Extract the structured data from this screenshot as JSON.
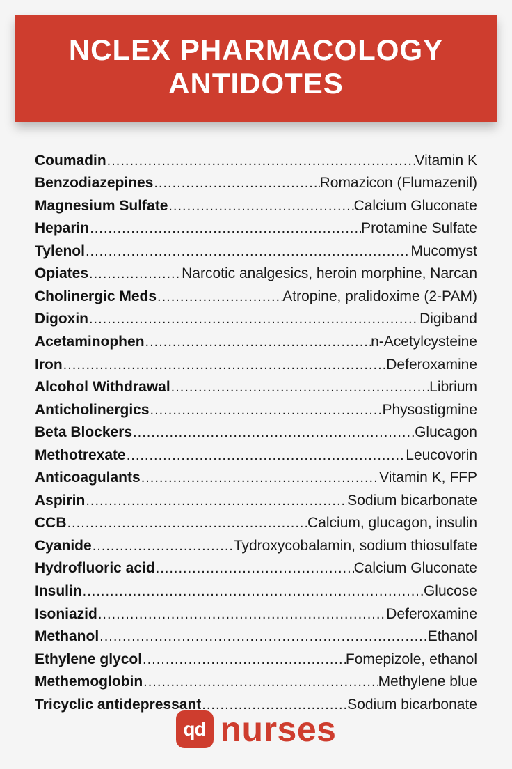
{
  "colors": {
    "accent": "#ce3d2e",
    "background": "#f5f5f5",
    "text": "#1a1a1a",
    "headerText": "#ffffff"
  },
  "header": {
    "line1": "NCLEX PHARMACOLOGY",
    "line2": "ANTIDOTES"
  },
  "rows": [
    {
      "drug": "Coumadin",
      "antidote": "Vitamin K"
    },
    {
      "drug": "Benzodiazepines",
      "antidote": "Romazicon (Flumazenil)"
    },
    {
      "drug": "Magnesium Sulfate",
      "antidote": "Calcium Gluconate"
    },
    {
      "drug": "Heparin",
      "antidote": " Protamine Sulfate"
    },
    {
      "drug": "Tylenol",
      "antidote": "Mucomyst"
    },
    {
      "drug": "Opiates",
      "antidote": "Narcotic analgesics, heroin morphine, Narcan"
    },
    {
      "drug": "Cholinergic Meds",
      "antidote": "Atropine, pralidoxime (2-PAM)"
    },
    {
      "drug": "Digoxin",
      "antidote": "Digiband"
    },
    {
      "drug": "Acetaminophen",
      "antidote": "n-Acetylcysteine"
    },
    {
      "drug": "Iron",
      "antidote": "Deferoxamine"
    },
    {
      "drug": "Alcohol Withdrawal",
      "antidote": "Librium"
    },
    {
      "drug": "Anticholinergics",
      "antidote": "Physostigmine"
    },
    {
      "drug": "Beta Blockers",
      "antidote": "Glucagon"
    },
    {
      "drug": "Methotrexate",
      "antidote": "Leucovorin"
    },
    {
      "drug": "Anticoagulants",
      "antidote": "Vitamin K, FFP"
    },
    {
      "drug": "Aspirin",
      "antidote": "Sodium bicarbonate"
    },
    {
      "drug": "CCB",
      "antidote": "Calcium, glucagon, insulin"
    },
    {
      "drug": "Cyanide",
      "antidote": "Tydroxycobalamin, sodium thiosulfate"
    },
    {
      "drug": "Hydrofluoric acid",
      "antidote": "Calcium Gluconate"
    },
    {
      "drug": "Insulin",
      "antidote": " Glucose"
    },
    {
      "drug": "Isoniazid",
      "antidote": "Deferoxamine"
    },
    {
      "drug": "Methanol",
      "antidote": "Ethanol"
    },
    {
      "drug": "Ethylene glycol",
      "antidote": "Fomepizole, ethanol"
    },
    {
      "drug": "Methemoglobin",
      "antidote": "Methylene blue"
    },
    {
      "drug": "Tricyclic antidepressant",
      "antidote": "Sodium bicarbonate"
    }
  ],
  "footer": {
    "badge": "qd",
    "brand": "nurses"
  }
}
